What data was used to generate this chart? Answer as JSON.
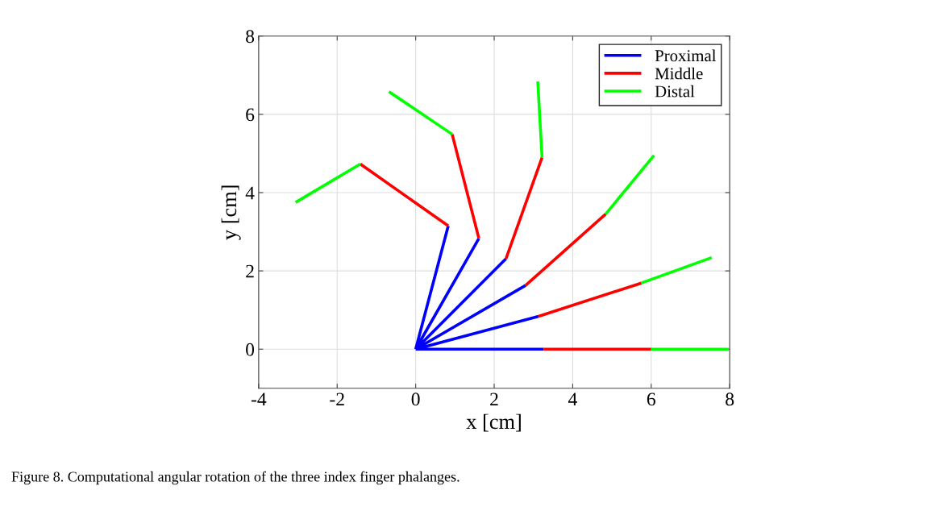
{
  "chart_data": {
    "type": "line",
    "xlabel": "x [cm]",
    "ylabel": "y [cm]",
    "xlim": [
      -4,
      8
    ],
    "ylim": [
      -1,
      8
    ],
    "xticks": [
      -4,
      -2,
      0,
      2,
      4,
      6,
      8
    ],
    "yticks": [
      0,
      2,
      4,
      6,
      8
    ],
    "grid": true,
    "legend": "top right",
    "marker": "none",
    "line_style": "solid",
    "series": [
      {
        "name": "Proximal",
        "color": "#0000ff",
        "x": [
          0,
          3.26,
          null,
          0,
          3.13,
          null,
          0,
          2.8,
          null,
          0,
          2.3,
          null,
          0,
          1.61,
          null,
          0,
          0.83
        ],
        "values": [
          0,
          0,
          null,
          0,
          0.84,
          null,
          0,
          1.63,
          null,
          0,
          2.31,
          null,
          0,
          2.83,
          null,
          0,
          3.15
        ]
      },
      {
        "name": "Middle",
        "color": "#ff0000",
        "x": [
          3.26,
          6.0,
          null,
          3.13,
          5.75,
          null,
          2.8,
          4.84,
          null,
          2.3,
          3.22,
          null,
          1.61,
          0.93,
          null,
          0.83,
          -1.41
        ],
        "values": [
          0,
          0,
          null,
          0.84,
          1.69,
          null,
          1.63,
          3.45,
          null,
          2.31,
          4.9,
          null,
          2.83,
          5.49,
          null,
          3.15,
          4.73
        ]
      },
      {
        "name": "Distal",
        "color": "#00ff00",
        "x": [
          6.0,
          7.97,
          null,
          5.75,
          7.54,
          null,
          4.84,
          6.07,
          null,
          3.22,
          3.11,
          null,
          0.93,
          -0.68,
          null,
          -1.41,
          -3.06
        ],
        "values": [
          0,
          0,
          null,
          1.69,
          2.34,
          null,
          3.45,
          4.95,
          null,
          4.9,
          6.84,
          null,
          5.49,
          6.58,
          null,
          4.73,
          3.75
        ]
      }
    ],
    "annotations": [
      "Figure 8. Computational angular rotation of the three index finger phalanges."
    ]
  }
}
